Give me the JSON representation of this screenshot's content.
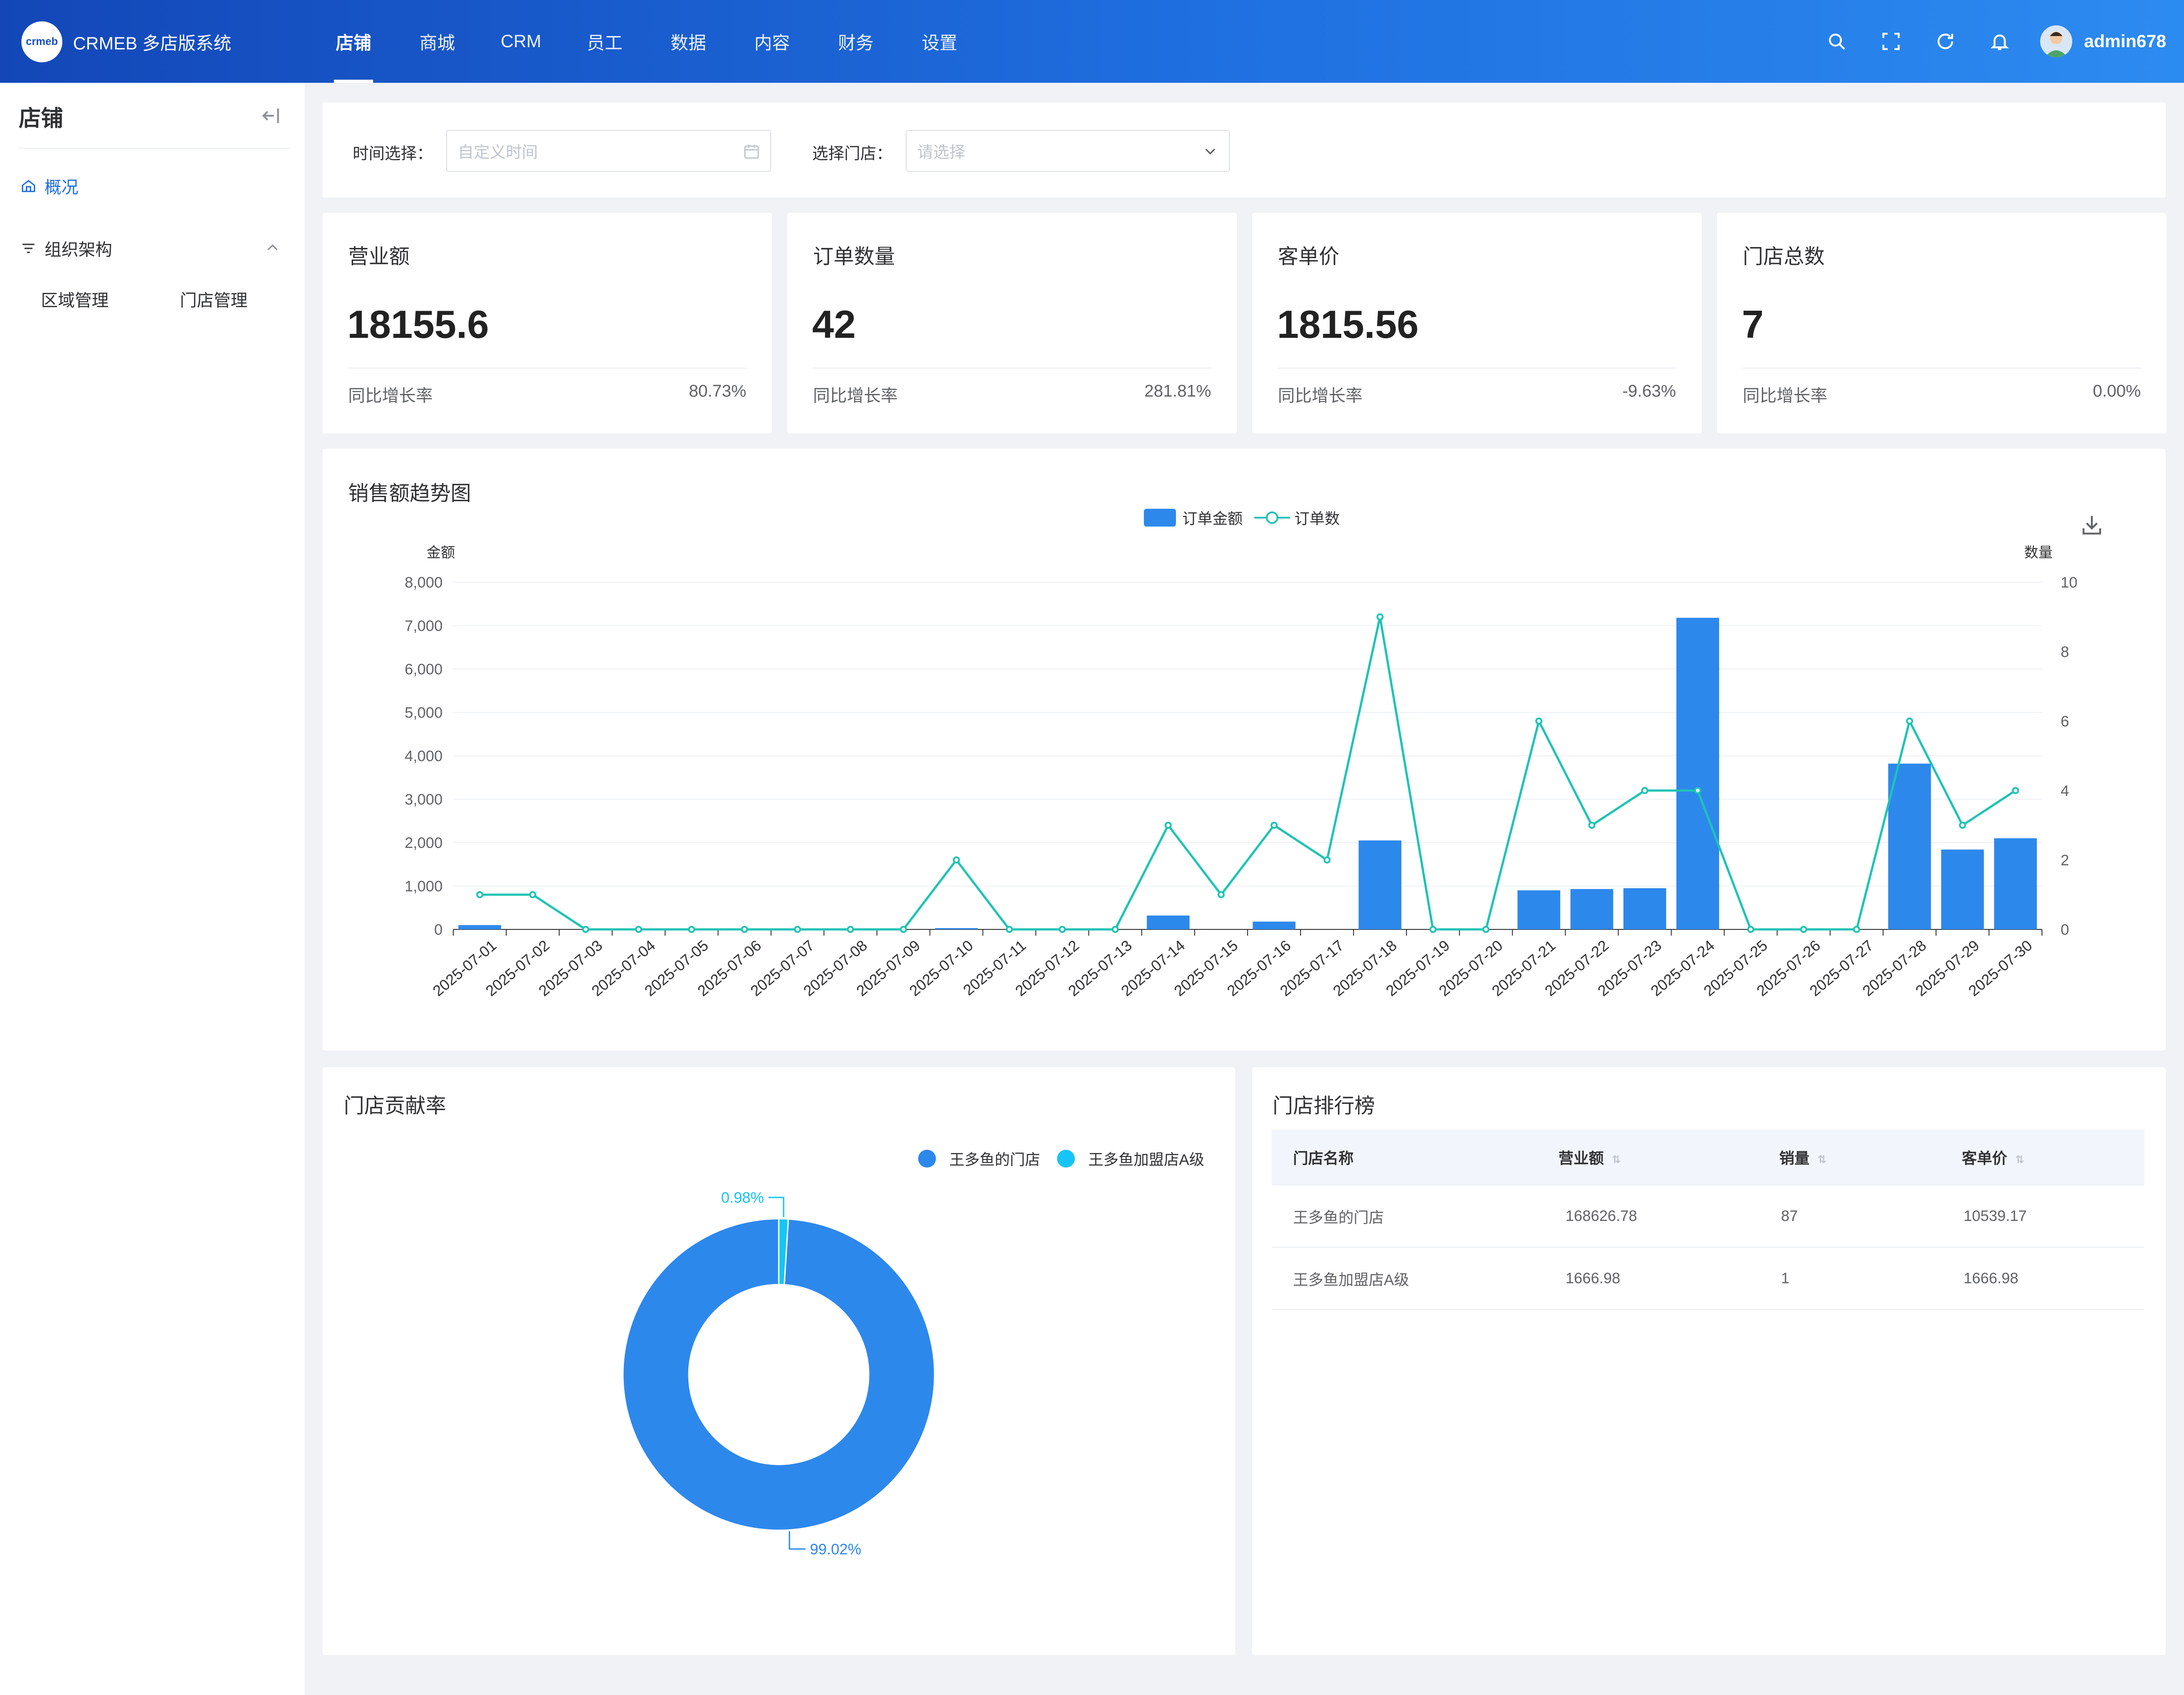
{
  "header": {
    "logo_mark": "crmeb",
    "app_title": "CRMEB 多店版系统",
    "nav": [
      "店铺",
      "商城",
      "CRM",
      "员工",
      "数据",
      "内容",
      "财务",
      "设置"
    ],
    "active_nav": 0,
    "username": "admin678",
    "icons": [
      "search-icon",
      "fullscreen-icon",
      "refresh-icon",
      "bell-icon"
    ]
  },
  "sidebar": {
    "title": "店铺",
    "overview": "概况",
    "group": "组织架构",
    "sub_items": [
      "区域管理",
      "门店管理"
    ]
  },
  "filters": {
    "time_label": "时间选择：",
    "time_placeholder": "自定义时间",
    "store_label": "选择门店：",
    "store_placeholder": "请选择"
  },
  "stats": [
    {
      "title": "营业额",
      "value": "18155.6",
      "foot_label": "同比增长率",
      "rate": "80.73%"
    },
    {
      "title": "订单数量",
      "value": "42",
      "foot_label": "同比增长率",
      "rate": "281.81%"
    },
    {
      "title": "客单价",
      "value": "1815.56",
      "foot_label": "同比增长率",
      "rate": "-9.63%"
    },
    {
      "title": "门店总数",
      "value": "7",
      "foot_label": "同比增长率",
      "rate": "0.00%"
    }
  ],
  "colors": {
    "accent": "#1f6fe0",
    "bar": "#2d88ec",
    "line": "#1fc3b4",
    "pie_main": "#2d88ec",
    "pie_minor": "#16c5f5"
  },
  "chart_data": [
    {
      "type": "bar",
      "title": "销售额趋势图",
      "legend": [
        "订单金额",
        "订单数"
      ],
      "ylabel": "金额",
      "y2label": "数量",
      "ylim": [
        0,
        8000
      ],
      "y2lim": [
        0,
        10
      ],
      "yticks": [
        "0",
        "1,000",
        "2,000",
        "3,000",
        "4,000",
        "5,000",
        "6,000",
        "7,000",
        "8,000"
      ],
      "y2ticks": [
        "0",
        "2",
        "4",
        "6",
        "8",
        "10"
      ],
      "categories": [
        "2025-07-01",
        "2025-07-02",
        "2025-07-03",
        "2025-07-04",
        "2025-07-05",
        "2025-07-06",
        "2025-07-07",
        "2025-07-08",
        "2025-07-09",
        "2025-07-10",
        "2025-07-11",
        "2025-07-12",
        "2025-07-13",
        "2025-07-14",
        "2025-07-15",
        "2025-07-16",
        "2025-07-17",
        "2025-07-18",
        "2025-07-19",
        "2025-07-20",
        "2025-07-21",
        "2025-07-22",
        "2025-07-23",
        "2025-07-24",
        "2025-07-25",
        "2025-07-26",
        "2025-07-27",
        "2025-07-28",
        "2025-07-29",
        "2025-07-30"
      ],
      "series": [
        {
          "name": "订单金额",
          "type": "bar",
          "axis": "left",
          "values": [
            100,
            0,
            0,
            0,
            0,
            0,
            0,
            0,
            0,
            30,
            0,
            0,
            0,
            320,
            0,
            180,
            0,
            2050,
            0,
            0,
            900,
            930,
            950,
            7180,
            0,
            0,
            0,
            3820,
            1840,
            2100
          ]
        },
        {
          "name": "订单数",
          "type": "line",
          "axis": "right",
          "values": [
            1,
            1,
            0,
            0,
            0,
            0,
            0,
            0,
            0,
            2,
            0,
            0,
            0,
            3,
            1,
            3,
            2,
            9,
            0,
            0,
            6,
            3,
            4,
            4,
            0,
            0,
            0,
            6,
            3,
            4
          ]
        }
      ]
    },
    {
      "type": "pie",
      "title": "门店贡献率",
      "legend": [
        "王多鱼的门店",
        "王多鱼加盟店A级"
      ],
      "values": [
        99.02,
        0.98
      ],
      "labels": [
        "99.02%",
        "0.98%"
      ]
    }
  ],
  "ranking": {
    "title": "门店排行榜",
    "columns": [
      "门店名称",
      "营业额",
      "销量",
      "客单价"
    ],
    "rows": [
      [
        "王多鱼的门店",
        "168626.78",
        "87",
        "10539.17"
      ],
      [
        "王多鱼加盟店A级",
        "1666.98",
        "1",
        "1666.98"
      ]
    ]
  }
}
